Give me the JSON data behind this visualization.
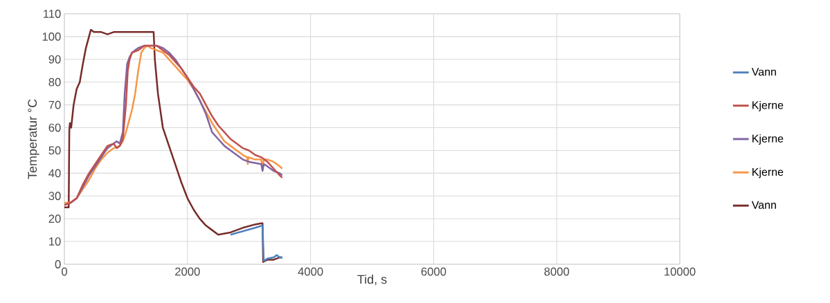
{
  "chart_data": {
    "type": "line",
    "xlabel": "Tid, s",
    "ylabel": "Temperatur °C",
    "xlim": [
      0,
      10000
    ],
    "ylim": [
      0,
      110
    ],
    "xticks": [
      0,
      2000,
      4000,
      6000,
      8000,
      10000
    ],
    "yticks": [
      0,
      10,
      20,
      30,
      40,
      50,
      60,
      70,
      80,
      90,
      100,
      110
    ],
    "grid": true,
    "legend": "right",
    "marker": "none",
    "line_style": "solid",
    "series": [
      {
        "name": "Vann",
        "color": "#4f81bd",
        "x": [
          2700,
          2900,
          3100,
          3220,
          3240,
          3300,
          3400,
          3450,
          3500,
          3540
        ],
        "values": [
          13,
          14.5,
          16,
          17,
          1.5,
          2.5,
          3,
          4,
          3,
          3
        ]
      },
      {
        "name": "Kjerne",
        "color": "#c0504d",
        "x": [
          0,
          100,
          200,
          300,
          400,
          500,
          600,
          700,
          800,
          850,
          900,
          950,
          1000,
          1030,
          1060,
          1100,
          1200,
          1300,
          1400,
          1500,
          1600,
          1700,
          1800,
          1900,
          2000,
          2100,
          2200,
          2300,
          2400,
          2500,
          2600,
          2700,
          2800,
          2900,
          3000,
          3100,
          3200,
          3300,
          3400,
          3500,
          3540
        ],
        "values": [
          26,
          27,
          29,
          35,
          40,
          44,
          48,
          52,
          53,
          51,
          52,
          55,
          70,
          85,
          90,
          93,
          94,
          96,
          96,
          96,
          94,
          92,
          89,
          86,
          82,
          78,
          75,
          70,
          65,
          61,
          58,
          55,
          53,
          51,
          50,
          48,
          47,
          45,
          42,
          39,
          38
        ]
      },
      {
        "name": "Kjerne",
        "color": "#8064a2",
        "x": [
          0,
          100,
          200,
          300,
          400,
          500,
          600,
          700,
          800,
          850,
          900,
          950,
          980,
          1020,
          1060,
          1100,
          1200,
          1300,
          1400,
          1500,
          1600,
          1700,
          1800,
          1900,
          2000,
          2100,
          2200,
          2300,
          2400,
          2500,
          2600,
          2700,
          2800,
          2900,
          3000,
          3200,
          3220,
          3240,
          3300,
          3400,
          3500,
          3540
        ],
        "values": [
          26,
          27,
          29,
          34,
          39,
          43,
          47,
          51,
          53,
          54,
          53,
          58,
          75,
          88,
          91,
          93,
          95,
          96,
          96,
          96,
          95,
          93,
          90,
          86,
          82,
          77,
          72,
          66,
          58,
          55,
          52,
          50,
          48,
          46,
          45,
          44,
          41,
          44,
          43,
          41,
          40,
          39
        ]
      },
      {
        "name": "Kjerne",
        "color": "#f79646",
        "x": [
          0,
          100,
          200,
          300,
          400,
          500,
          600,
          700,
          800,
          900,
          950,
          1000,
          1050,
          1100,
          1150,
          1200,
          1250,
          1300,
          1350,
          1400,
          1500,
          1600,
          1700,
          1800,
          1900,
          2000,
          2100,
          2200,
          2300,
          2400,
          2500,
          2600,
          2700,
          2800,
          2900,
          2970,
          2980,
          2990,
          3100,
          3200,
          3220,
          3240,
          3300,
          3400,
          3500,
          3540
        ],
        "values": [
          27,
          27,
          29,
          33,
          37,
          42,
          46,
          49,
          51,
          52,
          54,
          58,
          63,
          68,
          75,
          85,
          93,
          95,
          96,
          95,
          94,
          93,
          90,
          87,
          84,
          81,
          77,
          72,
          67,
          62,
          58,
          54,
          52,
          50,
          48,
          47,
          44,
          47,
          46,
          46,
          42,
          46,
          46,
          45,
          43,
          42
        ]
      },
      {
        "name": "Vann",
        "color": "#772c2a",
        "x": [
          0,
          70,
          80,
          90,
          110,
          150,
          200,
          250,
          300,
          350,
          400,
          430,
          480,
          600,
          700,
          800,
          900,
          1000,
          1200,
          1450,
          1470,
          1520,
          1600,
          1700,
          1800,
          1900,
          2000,
          2100,
          2200,
          2300,
          2400,
          2500,
          2700,
          2900,
          3100,
          3200,
          3220,
          3230,
          3300,
          3400,
          3500,
          3540
        ],
        "values": [
          25,
          25,
          59,
          62,
          60,
          70,
          77,
          80,
          88,
          95,
          100,
          103,
          102,
          102,
          101,
          102,
          102,
          102,
          102,
          102,
          90,
          75,
          60,
          52,
          44,
          36,
          29,
          24,
          20,
          17,
          15,
          13,
          14,
          16,
          17.5,
          18,
          18,
          1,
          2,
          2,
          3,
          3
        ]
      }
    ]
  }
}
